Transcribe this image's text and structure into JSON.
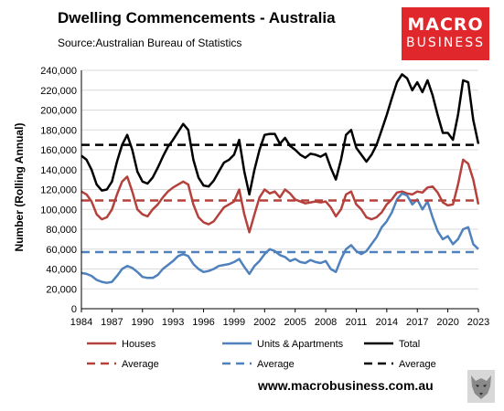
{
  "header": {
    "title": "Dwelling Commencements - Australia",
    "subtitle": "Source:Australian Bureau of Statistics"
  },
  "logo": {
    "line1": "MACRO",
    "line2": "BUSINESS"
  },
  "footer": {
    "website": "www.macrobusiness.com.au"
  },
  "colors": {
    "houses": "#b5413c",
    "units": "#4f81bd",
    "total": "#000000"
  },
  "chart_data": {
    "type": "line",
    "title": "Dwelling Commencements - Australia",
    "subtitle": "Source:Australian Bureau of Statistics",
    "ylabel": "Number (Rolling Annual)",
    "xlabel": "",
    "ylim": [
      0,
      240000
    ],
    "xlim": [
      1984,
      2023
    ],
    "yticks": [
      "0",
      "20,000",
      "40,000",
      "60,000",
      "80,000",
      "100,000",
      "120,000",
      "140,000",
      "160,000",
      "180,000",
      "200,000",
      "220,000",
      "240,000"
    ],
    "xticks": [
      "1984",
      "1987",
      "1990",
      "1993",
      "1996",
      "1999",
      "2002",
      "2005",
      "2008",
      "2011",
      "2014",
      "2017",
      "2020",
      "2023"
    ],
    "grid": true,
    "legend_position": "bottom",
    "series": [
      {
        "name": "Houses",
        "color": "#b5413c",
        "style": "solid",
        "x": [
          1984.0,
          1984.5,
          1985.0,
          1985.5,
          1986.0,
          1986.5,
          1987.0,
          1987.5,
          1988.0,
          1988.5,
          1989.0,
          1989.5,
          1990.0,
          1990.5,
          1991.0,
          1991.5,
          1992.0,
          1992.5,
          1993.0,
          1993.5,
          1994.0,
          1994.5,
          1995.0,
          1995.5,
          1996.0,
          1996.5,
          1997.0,
          1997.5,
          1998.0,
          1998.5,
          1999.0,
          1999.5,
          2000.0,
          2000.5,
          2001.0,
          2001.5,
          2002.0,
          2002.5,
          2003.0,
          2003.5,
          2004.0,
          2004.5,
          2005.0,
          2005.5,
          2006.0,
          2006.5,
          2007.0,
          2007.5,
          2008.0,
          2008.5,
          2009.0,
          2009.5,
          2010.0,
          2010.5,
          2011.0,
          2011.5,
          2012.0,
          2012.5,
          2013.0,
          2013.5,
          2014.0,
          2014.5,
          2015.0,
          2015.5,
          2016.0,
          2016.5,
          2017.0,
          2017.5,
          2018.0,
          2018.5,
          2019.0,
          2019.5,
          2020.0,
          2020.5,
          2021.0,
          2021.5,
          2022.0,
          2022.5,
          2023.0
        ],
        "y": [
          118000,
          115000,
          108000,
          95000,
          90000,
          92000,
          100000,
          115000,
          128000,
          133000,
          118000,
          100000,
          95000,
          93000,
          100000,
          105000,
          112000,
          118000,
          122000,
          125000,
          128000,
          125000,
          105000,
          92000,
          87000,
          85000,
          88000,
          95000,
          102000,
          105000,
          108000,
          120000,
          95000,
          77000,
          95000,
          112000,
          120000,
          116000,
          118000,
          112000,
          120000,
          116000,
          110000,
          108000,
          106000,
          107000,
          108000,
          107000,
          108000,
          102000,
          93000,
          100000,
          115000,
          118000,
          105000,
          100000,
          92000,
          90000,
          92000,
          97000,
          105000,
          110000,
          117000,
          118000,
          116000,
          115000,
          118000,
          117000,
          122000,
          123000,
          117000,
          107000,
          104000,
          105000,
          125000,
          150000,
          146000,
          130000,
          105000
        ]
      },
      {
        "name": "Units & Apartments",
        "color": "#4f81bd",
        "style": "solid",
        "x": [
          1984.0,
          1984.5,
          1985.0,
          1985.5,
          1986.0,
          1986.5,
          1987.0,
          1987.5,
          1988.0,
          1988.5,
          1989.0,
          1989.5,
          1990.0,
          1990.5,
          1991.0,
          1991.5,
          1992.0,
          1992.5,
          1993.0,
          1993.5,
          1994.0,
          1994.5,
          1995.0,
          1995.5,
          1996.0,
          1996.5,
          1997.0,
          1997.5,
          1998.0,
          1998.5,
          1999.0,
          1999.5,
          2000.0,
          2000.5,
          2001.0,
          2001.5,
          2002.0,
          2002.5,
          2003.0,
          2003.5,
          2004.0,
          2004.5,
          2005.0,
          2005.5,
          2006.0,
          2006.5,
          2007.0,
          2007.5,
          2008.0,
          2008.5,
          2009.0,
          2009.5,
          2010.0,
          2010.5,
          2011.0,
          2011.5,
          2012.0,
          2012.5,
          2013.0,
          2013.5,
          2014.0,
          2014.5,
          2015.0,
          2015.5,
          2016.0,
          2016.5,
          2017.0,
          2017.5,
          2018.0,
          2018.5,
          2019.0,
          2019.5,
          2020.0,
          2020.5,
          2021.0,
          2021.5,
          2022.0,
          2022.5,
          2023.0
        ],
        "y": [
          36000,
          35000,
          33000,
          29000,
          27000,
          26000,
          27000,
          33000,
          40000,
          43000,
          41000,
          37000,
          32000,
          31000,
          31000,
          34000,
          40000,
          44000,
          48000,
          53000,
          55000,
          53000,
          45000,
          40000,
          37000,
          38000,
          40000,
          43000,
          44000,
          45000,
          47000,
          50000,
          42000,
          35000,
          43000,
          48000,
          55000,
          60000,
          58000,
          54000,
          52000,
          48000,
          50000,
          47000,
          46000,
          49000,
          47000,
          46000,
          48000,
          40000,
          37000,
          50000,
          60000,
          64000,
          58000,
          55000,
          58000,
          65000,
          72000,
          82000,
          88000,
          97000,
          110000,
          116000,
          114000,
          105000,
          110000,
          100000,
          108000,
          92000,
          78000,
          70000,
          73000,
          65000,
          70000,
          80000,
          82000,
          65000,
          60000
        ]
      },
      {
        "name": "Total",
        "color": "#000000",
        "style": "solid",
        "x": [
          1984.0,
          1984.5,
          1985.0,
          1985.5,
          1986.0,
          1986.5,
          1987.0,
          1987.5,
          1988.0,
          1988.5,
          1989.0,
          1989.5,
          1990.0,
          1990.5,
          1991.0,
          1991.5,
          1992.0,
          1992.5,
          1993.0,
          1993.5,
          1994.0,
          1994.5,
          1995.0,
          1995.5,
          1996.0,
          1996.5,
          1997.0,
          1997.5,
          1998.0,
          1998.5,
          1999.0,
          1999.5,
          2000.0,
          2000.5,
          2001.0,
          2001.5,
          2002.0,
          2002.5,
          2003.0,
          2003.5,
          2004.0,
          2004.5,
          2005.0,
          2005.5,
          2006.0,
          2006.5,
          2007.0,
          2007.5,
          2008.0,
          2008.5,
          2009.0,
          2009.5,
          2010.0,
          2010.5,
          2011.0,
          2011.5,
          2012.0,
          2012.5,
          2013.0,
          2013.5,
          2014.0,
          2014.5,
          2015.0,
          2015.5,
          2016.0,
          2016.5,
          2017.0,
          2017.5,
          2018.0,
          2018.5,
          2019.0,
          2019.5,
          2020.0,
          2020.5,
          2021.0,
          2021.5,
          2022.0,
          2022.5,
          2023.0
        ],
        "y": [
          154000,
          150000,
          140000,
          125000,
          119000,
          120000,
          128000,
          148000,
          165000,
          175000,
          160000,
          138000,
          128000,
          126000,
          132000,
          142000,
          153000,
          163000,
          170000,
          178000,
          186000,
          180000,
          150000,
          132000,
          124000,
          123000,
          129000,
          138000,
          147000,
          150000,
          155000,
          170000,
          138000,
          115000,
          140000,
          160000,
          175000,
          176000,
          176000,
          166000,
          172000,
          164000,
          160000,
          155000,
          152000,
          156000,
          155000,
          153000,
          156000,
          142000,
          130000,
          150000,
          175000,
          180000,
          162000,
          155000,
          148000,
          155000,
          165000,
          180000,
          195000,
          212000,
          228000,
          236000,
          232000,
          220000,
          228000,
          218000,
          230000,
          215000,
          195000,
          177000,
          177000,
          170000,
          195000,
          230000,
          228000,
          190000,
          166000
        ]
      },
      {
        "name": "Average",
        "color": "#b5413c",
        "style": "dashed",
        "x": [
          1984,
          2023
        ],
        "y": [
          109000,
          109000
        ]
      },
      {
        "name": "Average",
        "color": "#4f81bd",
        "style": "dashed",
        "x": [
          1984,
          2023
        ],
        "y": [
          57000,
          57000
        ]
      },
      {
        "name": "Average",
        "color": "#000000",
        "style": "dashed",
        "x": [
          1984,
          2023
        ],
        "y": [
          165000,
          165000
        ]
      }
    ]
  }
}
